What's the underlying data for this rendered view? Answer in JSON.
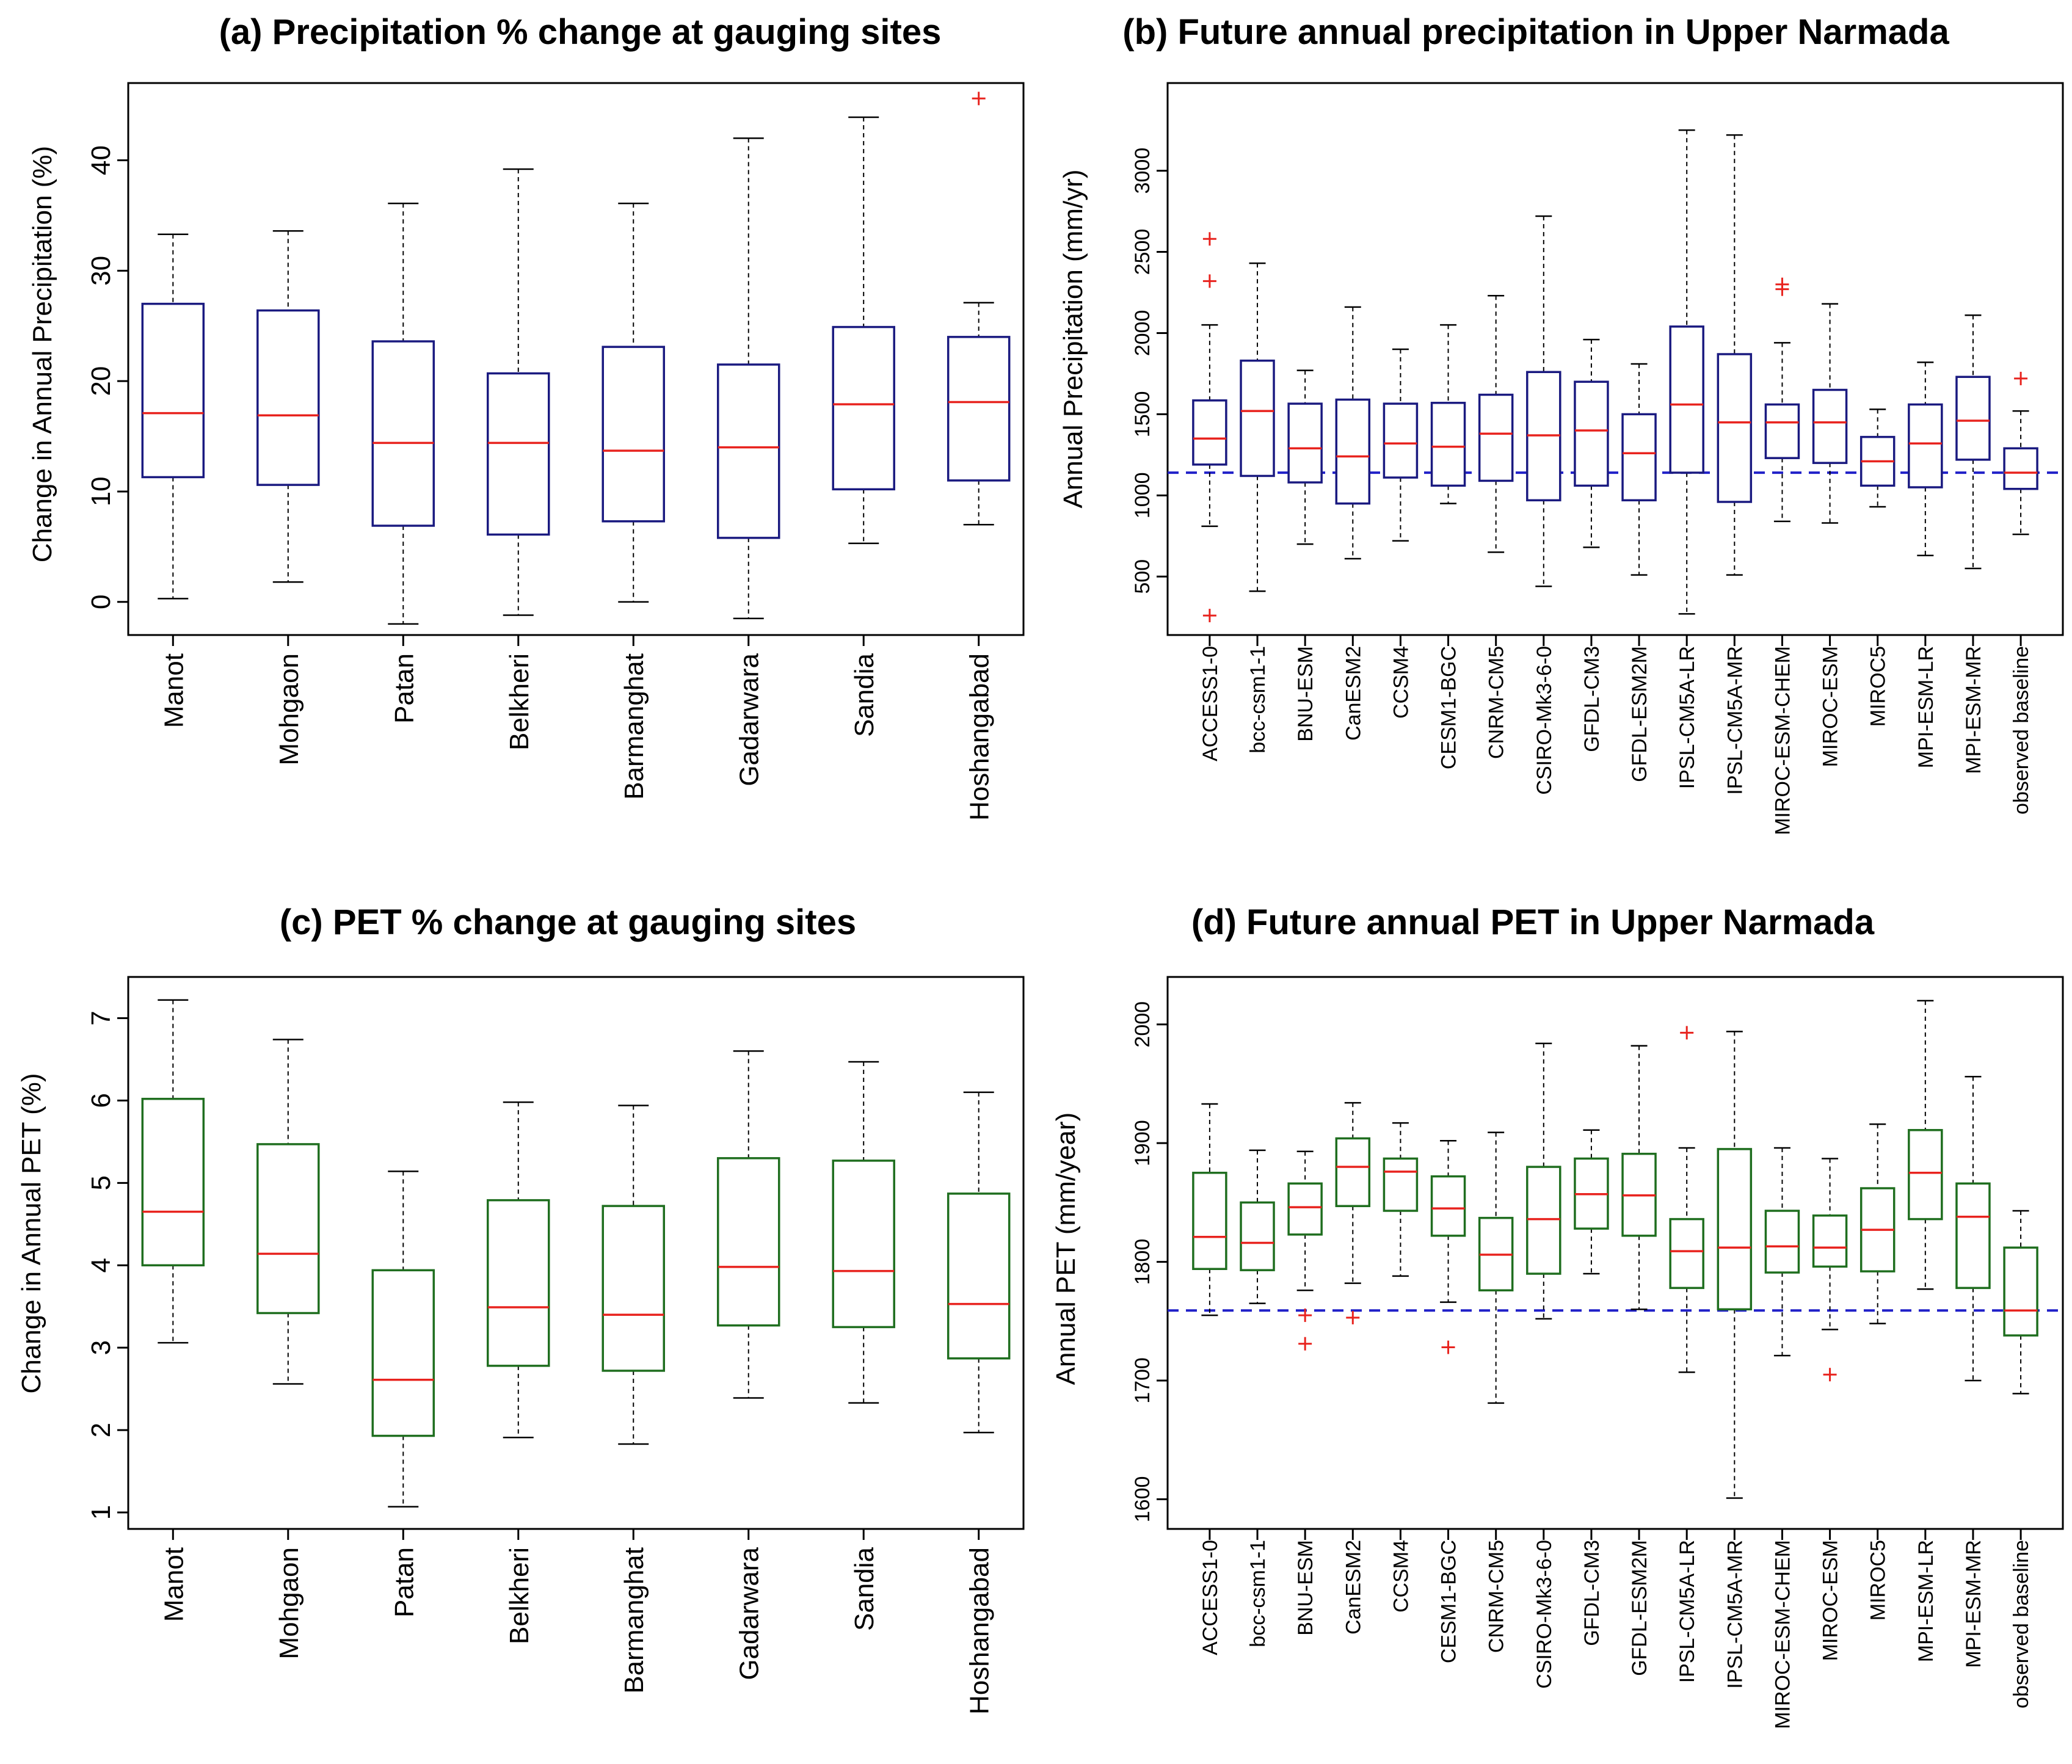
{
  "colors": {
    "precip_box": "#1a1a80",
    "pet_box": "#1f6e1f",
    "median": "#e8231e",
    "outlier": "#e8231e",
    "whisker": "#000000",
    "baseline_line": "#2020c8"
  },
  "chart_data": [
    {
      "panel": "a",
      "type": "boxplot",
      "title": "(a) Precipitation % change at gauging sites",
      "ylabel": "Change in Annual Precipitation (%)",
      "xlabel": "",
      "ylim": [
        -3,
        47
      ],
      "yticks": [
        0,
        10,
        20,
        30,
        40
      ],
      "categories": [
        "Manot",
        "Mohgaon",
        "Patan",
        "Belkheri",
        "Barmanghat",
        "Gadarwara",
        "Sandia",
        "Hoshangabad"
      ],
      "boxes": [
        {
          "min": 0.3,
          "q1": 11.3,
          "median": 17.1,
          "q3": 27.0,
          "max": 33.3,
          "outliers": []
        },
        {
          "min": 1.8,
          "q1": 10.6,
          "median": 16.9,
          "q3": 26.4,
          "max": 33.6,
          "outliers": []
        },
        {
          "min": -2.0,
          "q1": 6.9,
          "median": 14.4,
          "q3": 23.6,
          "max": 36.1,
          "outliers": []
        },
        {
          "min": -1.2,
          "q1": 6.1,
          "median": 14.4,
          "q3": 20.7,
          "max": 39.2,
          "outliers": []
        },
        {
          "min": 0.0,
          "q1": 7.3,
          "median": 13.7,
          "q3": 23.1,
          "max": 36.1,
          "outliers": []
        },
        {
          "min": -1.5,
          "q1": 5.8,
          "median": 14.0,
          "q3": 21.5,
          "max": 42.0,
          "outliers": []
        },
        {
          "min": 5.3,
          "q1": 10.2,
          "median": 17.9,
          "q3": 24.9,
          "max": 43.9,
          "outliers": []
        },
        {
          "min": 7.0,
          "q1": 11.0,
          "median": 18.1,
          "q3": 24.0,
          "max": 27.1,
          "outliers": [
            45.6
          ]
        }
      ]
    },
    {
      "panel": "b",
      "type": "boxplot",
      "title": "(b) Future annual precipitation in Upper Narmada",
      "ylabel": "Annual Precipitation (mm/yr)",
      "xlabel": "",
      "ylim": [
        140,
        3540
      ],
      "yticks": [
        500,
        1000,
        1500,
        2000,
        2500,
        3000
      ],
      "reference_line": 1140,
      "categories": [
        "ACCESS1-0",
        "bcc-csm1-1",
        "BNU-ESM",
        "CanESM2",
        "CCSM4",
        "CESM1-BGC",
        "CNRM-CM5",
        "CSIRO-Mk3-6-0",
        "GFDL-CM3",
        "GFDL-ESM2M",
        "IPSL-CM5A-LR",
        "IPSL-CM5A-MR",
        "MIROC-ESM-CHEM",
        "MIROC-ESM",
        "MIROC5",
        "MPI-ESM-LR",
        "MPI-ESM-MR",
        "observed baseline"
      ],
      "boxes": [
        {
          "min": 810,
          "q1": 1190,
          "median": 1350,
          "q3": 1585,
          "max": 2050,
          "outliers": [
            2320,
            2580,
            260
          ]
        },
        {
          "min": 410,
          "q1": 1120,
          "median": 1520,
          "q3": 1830,
          "max": 2430,
          "outliers": []
        },
        {
          "min": 700,
          "q1": 1080,
          "median": 1290,
          "q3": 1565,
          "max": 1770,
          "outliers": []
        },
        {
          "min": 610,
          "q1": 950,
          "median": 1240,
          "q3": 1590,
          "max": 2160,
          "outliers": []
        },
        {
          "min": 720,
          "q1": 1110,
          "median": 1320,
          "q3": 1565,
          "max": 1900,
          "outliers": []
        },
        {
          "min": 950,
          "q1": 1060,
          "median": 1300,
          "q3": 1570,
          "max": 2050,
          "outliers": []
        },
        {
          "min": 650,
          "q1": 1090,
          "median": 1380,
          "q3": 1620,
          "max": 2230,
          "outliers": []
        },
        {
          "min": 440,
          "q1": 970,
          "median": 1370,
          "q3": 1760,
          "max": 2720,
          "outliers": []
        },
        {
          "min": 680,
          "q1": 1060,
          "median": 1400,
          "q3": 1700,
          "max": 1960,
          "outliers": []
        },
        {
          "min": 510,
          "q1": 970,
          "median": 1260,
          "q3": 1500,
          "max": 1810,
          "outliers": []
        },
        {
          "min": 270,
          "q1": 1140,
          "median": 1560,
          "q3": 2040,
          "max": 3250,
          "outliers": []
        },
        {
          "min": 510,
          "q1": 960,
          "median": 1450,
          "q3": 1870,
          "max": 3220,
          "outliers": []
        },
        {
          "min": 840,
          "q1": 1230,
          "median": 1450,
          "q3": 1560,
          "max": 1940,
          "outliers": [
            2270,
            2300
          ]
        },
        {
          "min": 830,
          "q1": 1200,
          "median": 1450,
          "q3": 1650,
          "max": 2180,
          "outliers": []
        },
        {
          "min": 930,
          "q1": 1060,
          "median": 1210,
          "q3": 1360,
          "max": 1530,
          "outliers": []
        },
        {
          "min": 630,
          "q1": 1050,
          "median": 1320,
          "q3": 1560,
          "max": 1820,
          "outliers": []
        },
        {
          "min": 550,
          "q1": 1220,
          "median": 1460,
          "q3": 1730,
          "max": 2110,
          "outliers": []
        },
        {
          "min": 760,
          "q1": 1040,
          "median": 1140,
          "q3": 1290,
          "max": 1520,
          "outliers": [
            1720
          ]
        }
      ]
    },
    {
      "panel": "c",
      "type": "boxplot",
      "title": "(c) PET % change at gauging sites",
      "ylabel": "Change in Annual PET (%)",
      "xlabel": "",
      "ylim": [
        0.8,
        7.5
      ],
      "yticks": [
        1,
        2,
        3,
        4,
        5,
        6,
        7
      ],
      "categories": [
        "Manot",
        "Mohgaon",
        "Patan",
        "Belkheri",
        "Barmanghat",
        "Gadarwara",
        "Sandia",
        "Hoshangabad"
      ],
      "boxes": [
        {
          "min": 3.06,
          "q1": 4.0,
          "median": 4.65,
          "q3": 6.02,
          "max": 7.22,
          "outliers": []
        },
        {
          "min": 2.56,
          "q1": 3.42,
          "median": 4.14,
          "q3": 5.47,
          "max": 6.74,
          "outliers": []
        },
        {
          "min": 1.07,
          "q1": 1.93,
          "median": 2.61,
          "q3": 3.94,
          "max": 5.14,
          "outliers": []
        },
        {
          "min": 1.91,
          "q1": 2.78,
          "median": 3.49,
          "q3": 4.79,
          "max": 5.98,
          "outliers": []
        },
        {
          "min": 1.83,
          "q1": 2.72,
          "median": 3.4,
          "q3": 4.72,
          "max": 5.94,
          "outliers": []
        },
        {
          "min": 2.39,
          "q1": 3.27,
          "median": 3.98,
          "q3": 5.3,
          "max": 6.6,
          "outliers": []
        },
        {
          "min": 2.33,
          "q1": 3.25,
          "median": 3.93,
          "q3": 5.27,
          "max": 6.47,
          "outliers": []
        },
        {
          "min": 1.97,
          "q1": 2.87,
          "median": 3.53,
          "q3": 4.87,
          "max": 6.1,
          "outliers": []
        }
      ]
    },
    {
      "panel": "d",
      "type": "boxplot",
      "title": "(d) Future annual PET in Upper Narmada",
      "ylabel": "Annual PET (mm/year)",
      "xlabel": "",
      "ylim": [
        1575,
        2040
      ],
      "yticks": [
        1600,
        1700,
        1800,
        1900,
        2000
      ],
      "reference_line": 1759,
      "categories": [
        "ACCESS1-0",
        "bcc-csm1-1",
        "BNU-ESM",
        "CanESM2",
        "CCSM4",
        "CESM1-BGC",
        "CNRM-CM5",
        "CSIRO-Mk3-6-0",
        "GFDL-CM3",
        "GFDL-ESM2M",
        "IPSL-CM5A-LR",
        "IPSL-CM5A-MR",
        "MIROC-ESM-CHEM",
        "MIROC-ESM",
        "MIROC5",
        "MPI-ESM-LR",
        "MPI-ESM-MR",
        "observed baseline"
      ],
      "boxes": [
        {
          "min": 1755,
          "q1": 1794,
          "median": 1821,
          "q3": 1875,
          "max": 1933,
          "outliers": []
        },
        {
          "min": 1765,
          "q1": 1793,
          "median": 1816,
          "q3": 1850,
          "max": 1894,
          "outliers": []
        },
        {
          "min": 1776,
          "q1": 1823,
          "median": 1846,
          "q3": 1866,
          "max": 1893,
          "outliers": [
            1755,
            1731
          ]
        },
        {
          "min": 1782,
          "q1": 1847,
          "median": 1880,
          "q3": 1904,
          "max": 1934,
          "outliers": [
            1753
          ]
        },
        {
          "min": 1788,
          "q1": 1843,
          "median": 1876,
          "q3": 1887,
          "max": 1917,
          "outliers": []
        },
        {
          "min": 1766,
          "q1": 1822,
          "median": 1845,
          "q3": 1872,
          "max": 1902,
          "outliers": [
            1728
          ]
        },
        {
          "min": 1681,
          "q1": 1776,
          "median": 1806,
          "q3": 1837,
          "max": 1909,
          "outliers": []
        },
        {
          "min": 1752,
          "q1": 1790,
          "median": 1836,
          "q3": 1880,
          "max": 1984,
          "outliers": []
        },
        {
          "min": 1790,
          "q1": 1828,
          "median": 1857,
          "q3": 1887,
          "max": 1911,
          "outliers": []
        },
        {
          "min": 1760,
          "q1": 1822,
          "median": 1856,
          "q3": 1891,
          "max": 1982,
          "outliers": []
        },
        {
          "min": 1707,
          "q1": 1778,
          "median": 1809,
          "q3": 1836,
          "max": 1896,
          "outliers": [
            1993
          ]
        },
        {
          "min": 1601,
          "q1": 1760,
          "median": 1812,
          "q3": 1895,
          "max": 1994,
          "outliers": []
        },
        {
          "min": 1721,
          "q1": 1791,
          "median": 1813,
          "q3": 1843,
          "max": 1896,
          "outliers": []
        },
        {
          "min": 1743,
          "q1": 1796,
          "median": 1812,
          "q3": 1839,
          "max": 1887,
          "outliers": [
            1705
          ]
        },
        {
          "min": 1748,
          "q1": 1792,
          "median": 1827,
          "q3": 1862,
          "max": 1916,
          "outliers": []
        },
        {
          "min": 1777,
          "q1": 1836,
          "median": 1875,
          "q3": 1911,
          "max": 2020,
          "outliers": []
        },
        {
          "min": 1700,
          "q1": 1778,
          "median": 1838,
          "q3": 1866,
          "max": 1956,
          "outliers": []
        },
        {
          "min": 1689,
          "q1": 1738,
          "median": 1759,
          "q3": 1812,
          "max": 1843,
          "outliers": []
        }
      ]
    }
  ]
}
